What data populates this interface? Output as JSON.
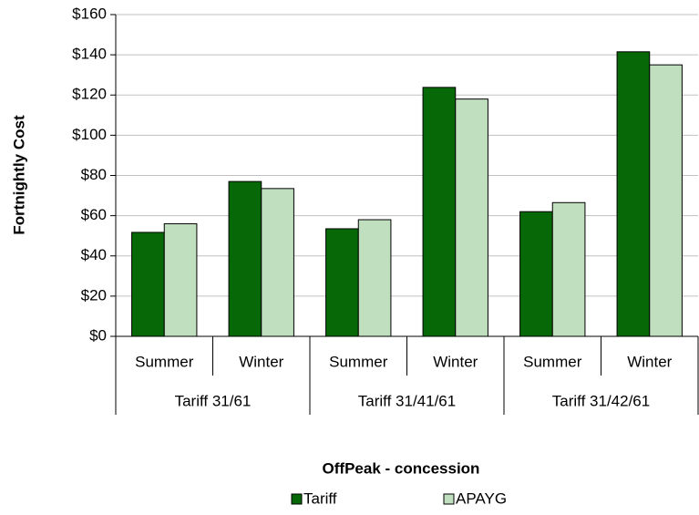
{
  "chart_data": {
    "type": "bar",
    "x_title": "OffPeak - concession",
    "y_title": "Fortnightly Cost",
    "categories": [
      "Summer",
      "Winter",
      "Summer",
      "Winter",
      "Summer",
      "Winter"
    ],
    "groups": [
      "Tariff 31/61",
      "Tariff 31/41/61",
      "Tariff 31/42/61"
    ],
    "series": [
      {
        "name": "Tariff",
        "color": "#076807",
        "values": [
          51.7,
          77,
          53.5,
          123.8,
          62,
          141.5
        ]
      },
      {
        "name": "APAYG",
        "color": "#bfdfbf",
        "values": [
          56,
          73.5,
          58,
          118,
          66.5,
          135
        ]
      }
    ],
    "ylim": [
      0,
      160
    ],
    "yticks": [
      {
        "value": 0,
        "label": "$0"
      },
      {
        "value": 20,
        "label": "$20"
      },
      {
        "value": 40,
        "label": "$40"
      },
      {
        "value": 60,
        "label": "$60"
      },
      {
        "value": 80,
        "label": "$80"
      },
      {
        "value": 100,
        "label": "$100"
      },
      {
        "value": 120,
        "label": "$120"
      },
      {
        "value": 140,
        "label": "$140"
      },
      {
        "value": 160,
        "label": "$160"
      }
    ],
    "grid": true,
    "legend": "bottom"
  }
}
